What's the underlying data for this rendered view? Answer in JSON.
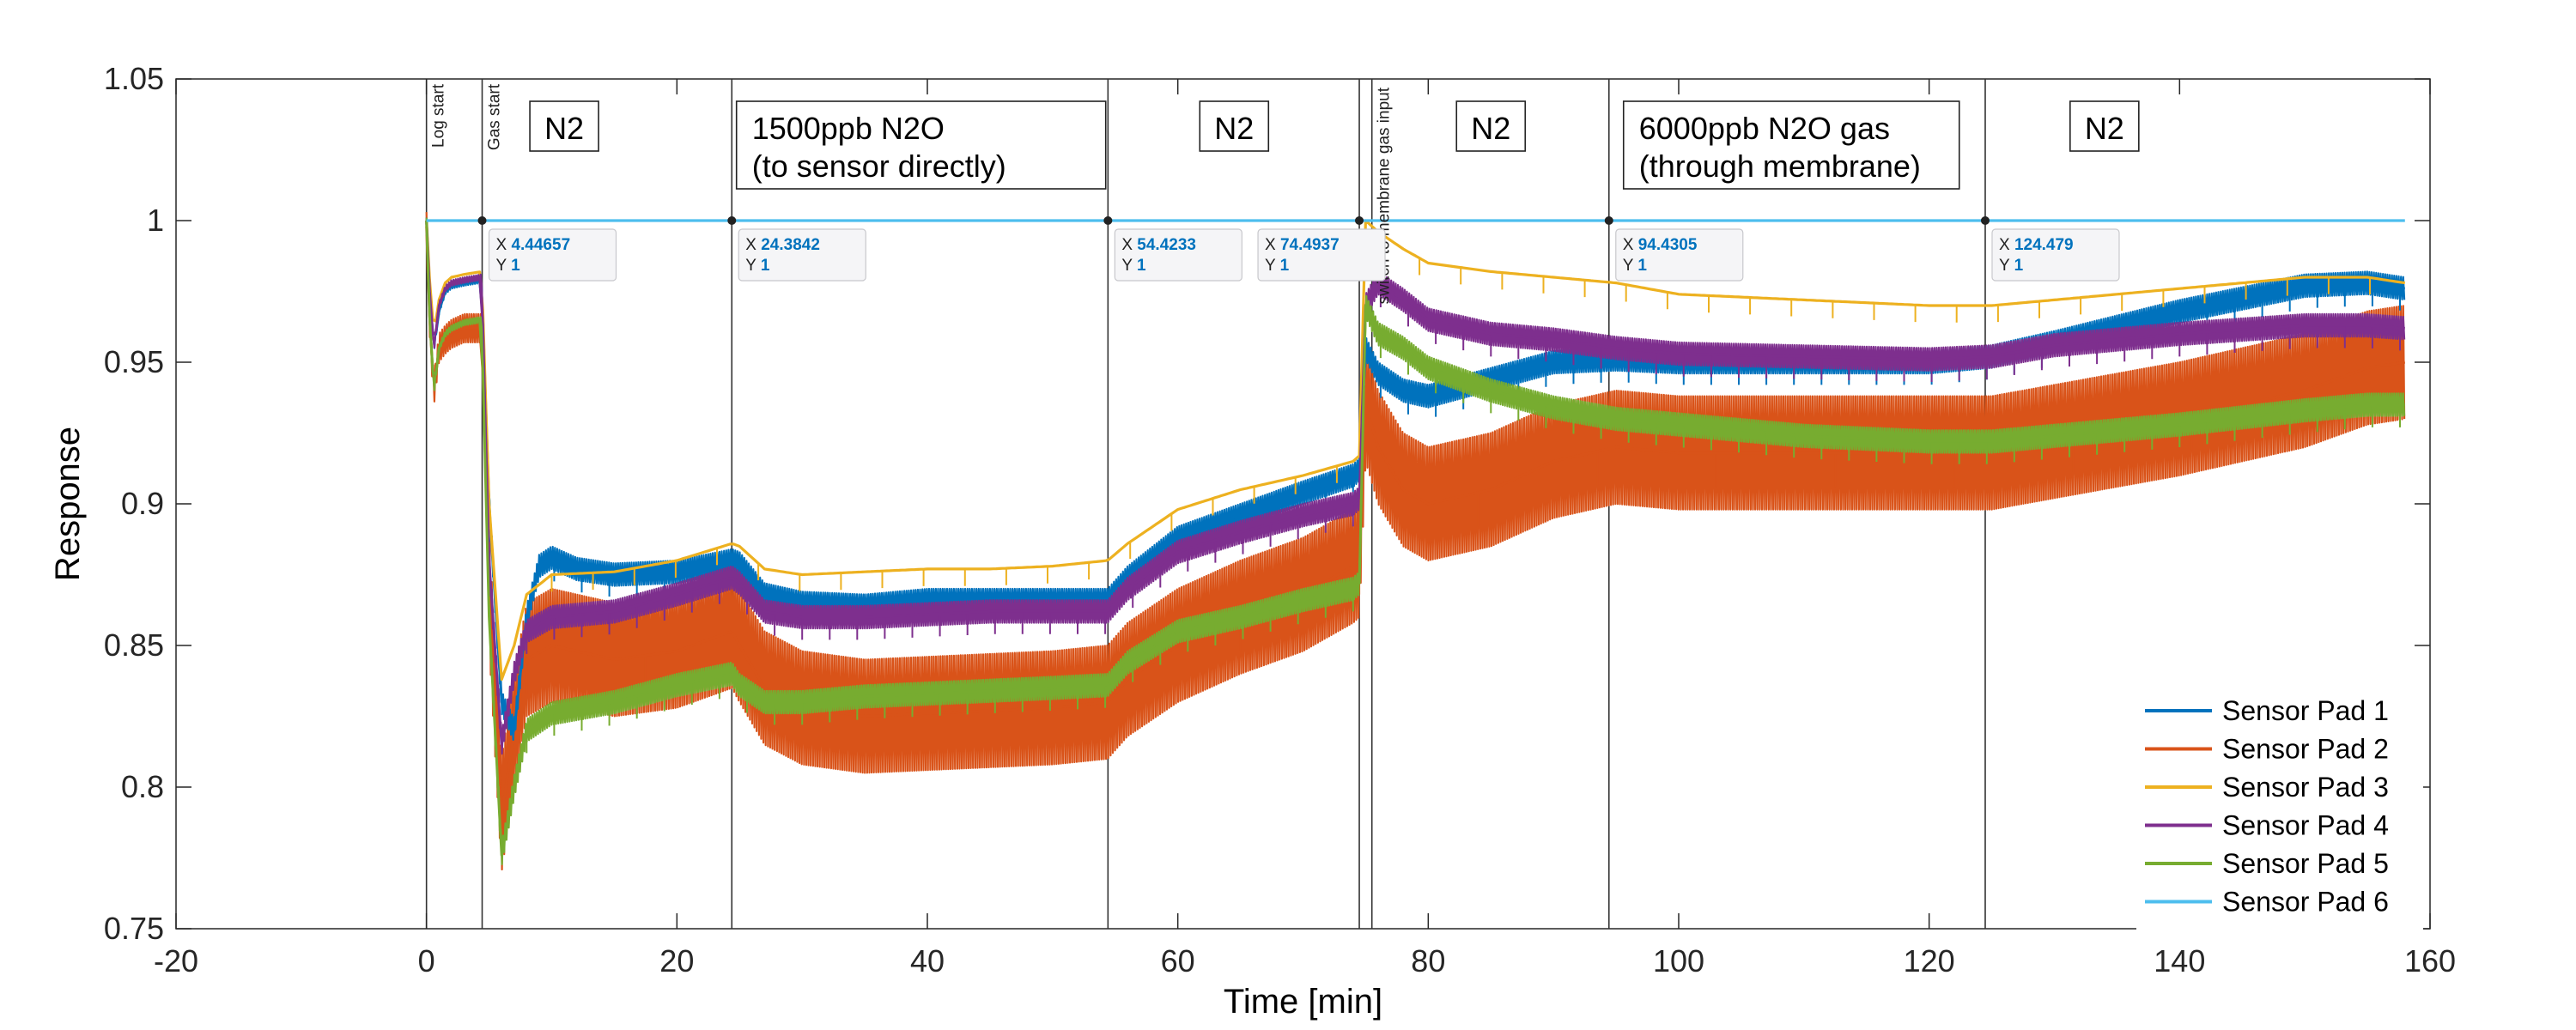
{
  "chart_data": {
    "type": "line",
    "title": "",
    "xlabel": "Time [min]",
    "ylabel": "Response",
    "xlim": [
      -20,
      160
    ],
    "ylim": [
      0.75,
      1.05
    ],
    "xticks": [
      -20,
      0,
      20,
      40,
      60,
      80,
      100,
      120,
      140,
      160
    ],
    "xtick_labels": [
      "-20",
      "0",
      "20",
      "40",
      "60",
      "80",
      "100",
      "120",
      "140",
      "160"
    ],
    "yticks": [
      0.75,
      0.8,
      0.85,
      0.9,
      0.95,
      1,
      1.05
    ],
    "ytick_labels": [
      "0.75",
      "0.8",
      "0.85",
      "0.9",
      "0.95",
      "1",
      "1.05"
    ],
    "grid": false,
    "legend_position": "bottom-right",
    "series": [
      {
        "name": "Sensor Pad 1",
        "color": "#0072BD",
        "band": 0.004,
        "x": [
          0,
          0.3,
          0.6,
          1,
          1.5,
          2,
          3,
          4.4,
          5,
          6,
          7,
          8,
          9,
          10,
          12,
          15,
          20,
          24.4,
          25,
          27,
          30,
          35,
          40,
          45,
          50,
          54.4,
          56,
          60,
          65,
          70,
          74,
          74.5,
          75,
          76,
          78,
          80,
          85,
          90,
          95,
          100,
          110,
          120,
          125,
          130,
          140,
          150,
          155,
          158
        ],
        "y": [
          1.0,
          0.97,
          0.955,
          0.968,
          0.975,
          0.977,
          0.978,
          0.979,
          0.9,
          0.83,
          0.82,
          0.86,
          0.878,
          0.881,
          0.877,
          0.875,
          0.876,
          0.88,
          0.879,
          0.868,
          0.865,
          0.864,
          0.866,
          0.866,
          0.866,
          0.866,
          0.874,
          0.888,
          0.896,
          0.904,
          0.91,
          0.912,
          0.955,
          0.946,
          0.94,
          0.938,
          0.944,
          0.95,
          0.951,
          0.95,
          0.95,
          0.95,
          0.952,
          0.957,
          0.968,
          0.977,
          0.978,
          0.976
        ]
      },
      {
        "name": "Sensor Pad 2",
        "color": "#D95319",
        "band": 0.02,
        "x": [
          0,
          0.3,
          0.6,
          1,
          1.5,
          2,
          3,
          4.4,
          5,
          6,
          7,
          8,
          10,
          12,
          15,
          20,
          24.4,
          25,
          27,
          30,
          35,
          40,
          45,
          50,
          54.4,
          56,
          60,
          65,
          70,
          74,
          74.5,
          75,
          76,
          78,
          80,
          85,
          90,
          95,
          100,
          110,
          120,
          125,
          130,
          140,
          150,
          155,
          158
        ],
        "y": [
          0.998,
          0.96,
          0.94,
          0.955,
          0.958,
          0.96,
          0.962,
          0.962,
          0.87,
          0.79,
          0.82,
          0.845,
          0.85,
          0.848,
          0.845,
          0.848,
          0.855,
          0.85,
          0.835,
          0.828,
          0.825,
          0.826,
          0.827,
          0.828,
          0.83,
          0.838,
          0.85,
          0.86,
          0.868,
          0.878,
          0.88,
          0.935,
          0.92,
          0.905,
          0.9,
          0.905,
          0.915,
          0.92,
          0.918,
          0.918,
          0.918,
          0.918,
          0.922,
          0.93,
          0.94,
          0.948,
          0.95
        ]
      },
      {
        "name": "Sensor Pad 3",
        "color": "#EDB120",
        "band": 0,
        "x": [
          0,
          0.3,
          0.6,
          1,
          1.5,
          2,
          3,
          4.4,
          5,
          6,
          7,
          8,
          10,
          15,
          20,
          24.4,
          25,
          27,
          30,
          35,
          40,
          45,
          50,
          54.4,
          56,
          60,
          65,
          70,
          74,
          74.5,
          75,
          76,
          78,
          80,
          85,
          90,
          95,
          100,
          110,
          120,
          125,
          130,
          140,
          150,
          155,
          158
        ],
        "y": [
          1.0,
          0.975,
          0.96,
          0.972,
          0.978,
          0.98,
          0.981,
          0.982,
          0.9,
          0.838,
          0.85,
          0.868,
          0.875,
          0.876,
          0.88,
          0.886,
          0.885,
          0.877,
          0.875,
          0.876,
          0.877,
          0.877,
          0.878,
          0.88,
          0.886,
          0.898,
          0.905,
          0.91,
          0.915,
          0.917,
          1.0,
          0.996,
          0.99,
          0.985,
          0.982,
          0.98,
          0.978,
          0.974,
          0.972,
          0.97,
          0.97,
          0.972,
          0.976,
          0.98,
          0.98,
          0.978
        ]
      },
      {
        "name": "Sensor Pad 4",
        "color": "#7E2F8E",
        "band": 0.004,
        "x": [
          0,
          0.3,
          0.6,
          1,
          1.5,
          2,
          3,
          4.4,
          5,
          6,
          7,
          8,
          10,
          15,
          20,
          24.4,
          25,
          27,
          30,
          35,
          40,
          45,
          50,
          54.4,
          56,
          60,
          65,
          70,
          74,
          74.5,
          75,
          76,
          78,
          80,
          85,
          90,
          95,
          100,
          110,
          120,
          125,
          130,
          140,
          150,
          155,
          158
        ],
        "y": [
          1.0,
          0.97,
          0.955,
          0.97,
          0.976,
          0.978,
          0.979,
          0.98,
          0.88,
          0.815,
          0.84,
          0.855,
          0.86,
          0.862,
          0.868,
          0.874,
          0.872,
          0.862,
          0.86,
          0.86,
          0.861,
          0.862,
          0.862,
          0.862,
          0.87,
          0.883,
          0.89,
          0.896,
          0.9,
          0.902,
          0.97,
          0.978,
          0.972,
          0.965,
          0.96,
          0.958,
          0.955,
          0.953,
          0.952,
          0.951,
          0.952,
          0.956,
          0.96,
          0.963,
          0.963,
          0.962
        ]
      },
      {
        "name": "Sensor Pad 5",
        "color": "#77AC30",
        "band": 0.004,
        "x": [
          0,
          0.3,
          0.6,
          1,
          1.5,
          2,
          3,
          4.4,
          5,
          6,
          7,
          8,
          10,
          15,
          20,
          24.4,
          25,
          27,
          30,
          35,
          40,
          45,
          50,
          54.4,
          56,
          60,
          65,
          70,
          74,
          74.5,
          75,
          76,
          78,
          80,
          85,
          90,
          95,
          100,
          110,
          120,
          125,
          130,
          140,
          150,
          155,
          158
        ],
        "y": [
          1.0,
          0.96,
          0.94,
          0.955,
          0.96,
          0.962,
          0.964,
          0.965,
          0.86,
          0.776,
          0.8,
          0.82,
          0.826,
          0.83,
          0.836,
          0.84,
          0.836,
          0.83,
          0.83,
          0.832,
          0.833,
          0.834,
          0.835,
          0.836,
          0.844,
          0.855,
          0.86,
          0.866,
          0.87,
          0.872,
          0.97,
          0.96,
          0.955,
          0.948,
          0.94,
          0.934,
          0.93,
          0.928,
          0.924,
          0.922,
          0.922,
          0.924,
          0.928,
          0.933,
          0.935,
          0.935
        ]
      },
      {
        "name": "Sensor Pad 6",
        "color": "#4DBEEE",
        "band": 0,
        "x": [
          0,
          158
        ],
        "y": [
          1,
          1
        ]
      }
    ],
    "vertical_lines": [
      {
        "x": 0,
        "label": "Log start"
      },
      {
        "x": 4.44657,
        "label": "Gas start"
      },
      {
        "x": 24.3842,
        "label": ""
      },
      {
        "x": 54.4233,
        "label": ""
      },
      {
        "x": 74.4937,
        "label": ""
      },
      {
        "x": 75.5,
        "label": "switch to membrane gas input"
      },
      {
        "x": 94.4305,
        "label": ""
      },
      {
        "x": 124.479,
        "label": ""
      }
    ],
    "phase_boxes": [
      {
        "lines": [
          "N2"
        ],
        "x": 11
      },
      {
        "lines": [
          "1500ppb N2O",
          "(to sensor directly)"
        ],
        "x": 39.5
      },
      {
        "lines": [
          "N2"
        ],
        "x": 64.5
      },
      {
        "lines": [
          "N2"
        ],
        "x": 85
      },
      {
        "lines": [
          "6000ppb N2O gas",
          "(through membrane)"
        ],
        "x": 109
      },
      {
        "lines": [
          "N2"
        ],
        "x": 134
      }
    ],
    "datatips": [
      {
        "x": 4.44657,
        "y": 1,
        "x_text": "4.44657",
        "y_text": "1"
      },
      {
        "x": 24.3842,
        "y": 1,
        "x_text": "24.3842",
        "y_text": "1"
      },
      {
        "x": 54.4233,
        "y": 1,
        "x_text": "54.4233",
        "y_text": "1"
      },
      {
        "x": 74.4937,
        "y": 1,
        "x_text": "74.4937",
        "y_text": "1"
      },
      {
        "x": 94.4305,
        "y": 1,
        "x_text": "94.4305",
        "y_text": "1"
      },
      {
        "x": 124.479,
        "y": 1,
        "x_text": "124.479",
        "y_text": "1"
      }
    ],
    "datatip_labels": {
      "x": "X",
      "y": "Y"
    }
  }
}
